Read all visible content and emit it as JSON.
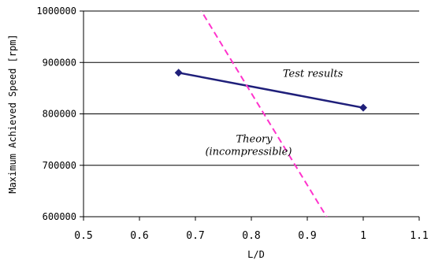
{
  "chart_data": {
    "type": "line",
    "xlabel": "L/D",
    "ylabel": "Maximum Achieved Speed [rpm]",
    "xlim": [
      0.5,
      1.1
    ],
    "ylim": [
      600000,
      1000000
    ],
    "x_ticks": [
      0.5,
      0.6,
      0.7,
      0.8,
      0.9,
      1,
      1.1
    ],
    "x_tick_labels": [
      "0.5",
      "0.6",
      "0.7",
      "0.8",
      "0.9",
      "1",
      "1.1"
    ],
    "y_ticks": [
      600000,
      700000,
      800000,
      900000,
      1000000
    ],
    "y_tick_labels": [
      "600000",
      "700000",
      "800000",
      "900000",
      "1000000"
    ],
    "grid": "horizontal",
    "series": [
      {
        "name": "Test results",
        "color": "#1f1f7a",
        "style": "solid",
        "marker": "diamond",
        "x": [
          0.67,
          1.0
        ],
        "y": [
          880000,
          812000
        ]
      },
      {
        "name": "Theory (incompressible)",
        "color": "#ff33cc",
        "style": "dashed",
        "marker": "none",
        "x": [
          0.705,
          0.94
        ],
        "y": [
          1010000,
          590000
        ]
      }
    ],
    "annotations": [
      {
        "text": "Test results",
        "x": 0.91,
        "y": 872000
      },
      {
        "text": "Theory",
        "x": 0.805,
        "y": 745000
      },
      {
        "text": "(incompressible)",
        "x": 0.795,
        "y": 720000
      }
    ]
  }
}
